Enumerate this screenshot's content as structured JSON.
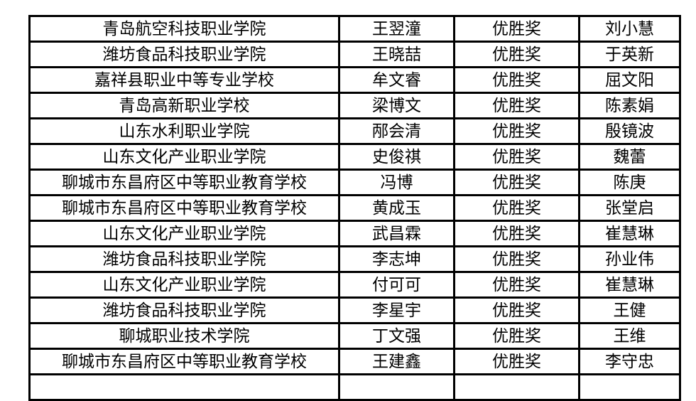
{
  "page": {
    "background_color": "#ffffff",
    "text_color": "#000000",
    "border_color": "#000000"
  },
  "table": {
    "description_columns": [
      "school",
      "student",
      "award",
      "teacher"
    ],
    "rows": [
      {
        "school": "青岛航空科技职业学院",
        "student": "王翌潼",
        "award": "优胜奖",
        "teacher": "刘小慧"
      },
      {
        "school": "潍坊食品科技职业学院",
        "student": "王晓喆",
        "award": "优胜奖",
        "teacher": "于英新"
      },
      {
        "school": "嘉祥县职业中等专业学校",
        "student": "牟文睿",
        "award": "优胜奖",
        "teacher": "屈文阳"
      },
      {
        "school": "青岛高新职业学校",
        "student": "梁博文",
        "award": "优胜奖",
        "teacher": "陈素娟"
      },
      {
        "school": "山东水利职业学院",
        "student": "邴会清",
        "award": "优胜奖",
        "teacher": "殷镜波"
      },
      {
        "school": "山东文化产业职业学院",
        "student": "史俊祺",
        "award": "优胜奖",
        "teacher": "魏蕾"
      },
      {
        "school": "聊城市东昌府区中等职业教育学校",
        "student": "冯博",
        "award": "优胜奖",
        "teacher": "陈庚"
      },
      {
        "school": "聊城市东昌府区中等职业教育学校",
        "student": "黄成玉",
        "award": "优胜奖",
        "teacher": "张堂启"
      },
      {
        "school": "山东文化产业职业学院",
        "student": "武昌霖",
        "award": "优胜奖",
        "teacher": "崔慧琳"
      },
      {
        "school": "潍坊食品科技职业学院",
        "student": "李志坤",
        "award": "优胜奖",
        "teacher": "孙业伟"
      },
      {
        "school": "山东文化产业职业学院",
        "student": "付可可",
        "award": "优胜奖",
        "teacher": "崔慧琳"
      },
      {
        "school": "潍坊食品科技职业学院",
        "student": "李星宇",
        "award": "优胜奖",
        "teacher": "王健"
      },
      {
        "school": "聊城职业技术学院",
        "student": "丁文强",
        "award": "优胜奖",
        "teacher": "王维"
      },
      {
        "school": "聊城市东昌府区中等职业教育学校",
        "student": "王建鑫",
        "award": "优胜奖",
        "teacher": "李守忠"
      },
      {
        "school": "",
        "student": "",
        "award": "",
        "teacher": ""
      }
    ]
  }
}
